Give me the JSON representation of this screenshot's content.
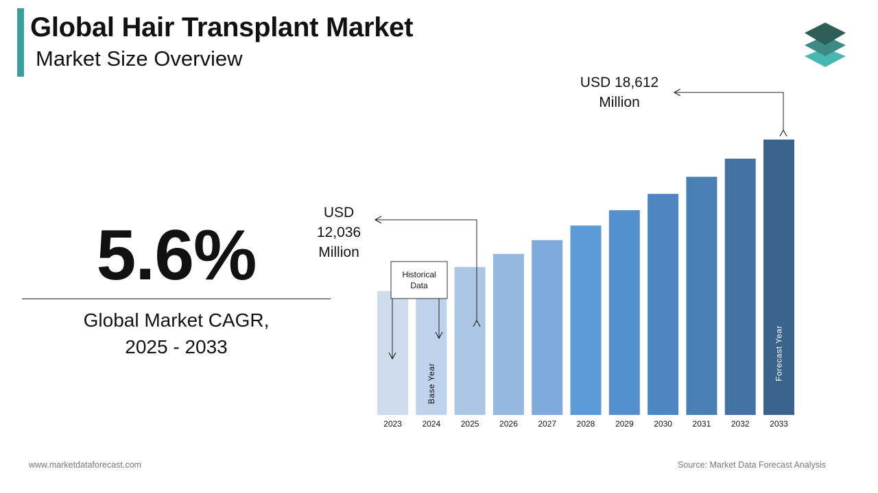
{
  "header": {
    "title": "Global Hair Transplant Market",
    "subtitle": "Market Size Overview",
    "accent_color": "#3c9e9c"
  },
  "logo": {
    "icon": "layered-stack-icon",
    "colors": [
      "#2f5d57",
      "#3e8a83",
      "#48b7b2"
    ]
  },
  "cagr": {
    "value": "5.6%",
    "label_line1": "Global Market CAGR,",
    "label_line2": "2025 - 2033"
  },
  "chart_data": {
    "type": "bar",
    "categories": [
      "2023",
      "2024",
      "2025",
      "2026",
      "2027",
      "2028",
      "2029",
      "2030",
      "2031",
      "2032",
      "2033"
    ],
    "values": [
      10791,
      11396,
      12036,
      12710,
      13422,
      14173,
      14967,
      15805,
      16690,
      17625,
      18612
    ],
    "ylim": [
      4400,
      19100
    ],
    "colors": [
      "#cfdcee",
      "#bfd2eb",
      "#acc6e6",
      "#95b8e0",
      "#7eaadc",
      "#5c9bd5",
      "#5490cc",
      "#4d86c0",
      "#4a7fb4",
      "#4473a3",
      "#3a648c"
    ],
    "bar_labels": {
      "1": "Base Year",
      "10": "Forecast Year"
    },
    "annotations": {
      "historical": {
        "line1": "Historical",
        "line2": "Data"
      },
      "start_value": {
        "line1": "USD",
        "line2": "12,036",
        "line3": "Million"
      },
      "end_value": {
        "line1": "USD 18,612",
        "line2": "Million"
      }
    }
  },
  "footer": {
    "website": "www.marketdataforecast.com",
    "source": "Source: Market Data Forecast Analysis"
  }
}
